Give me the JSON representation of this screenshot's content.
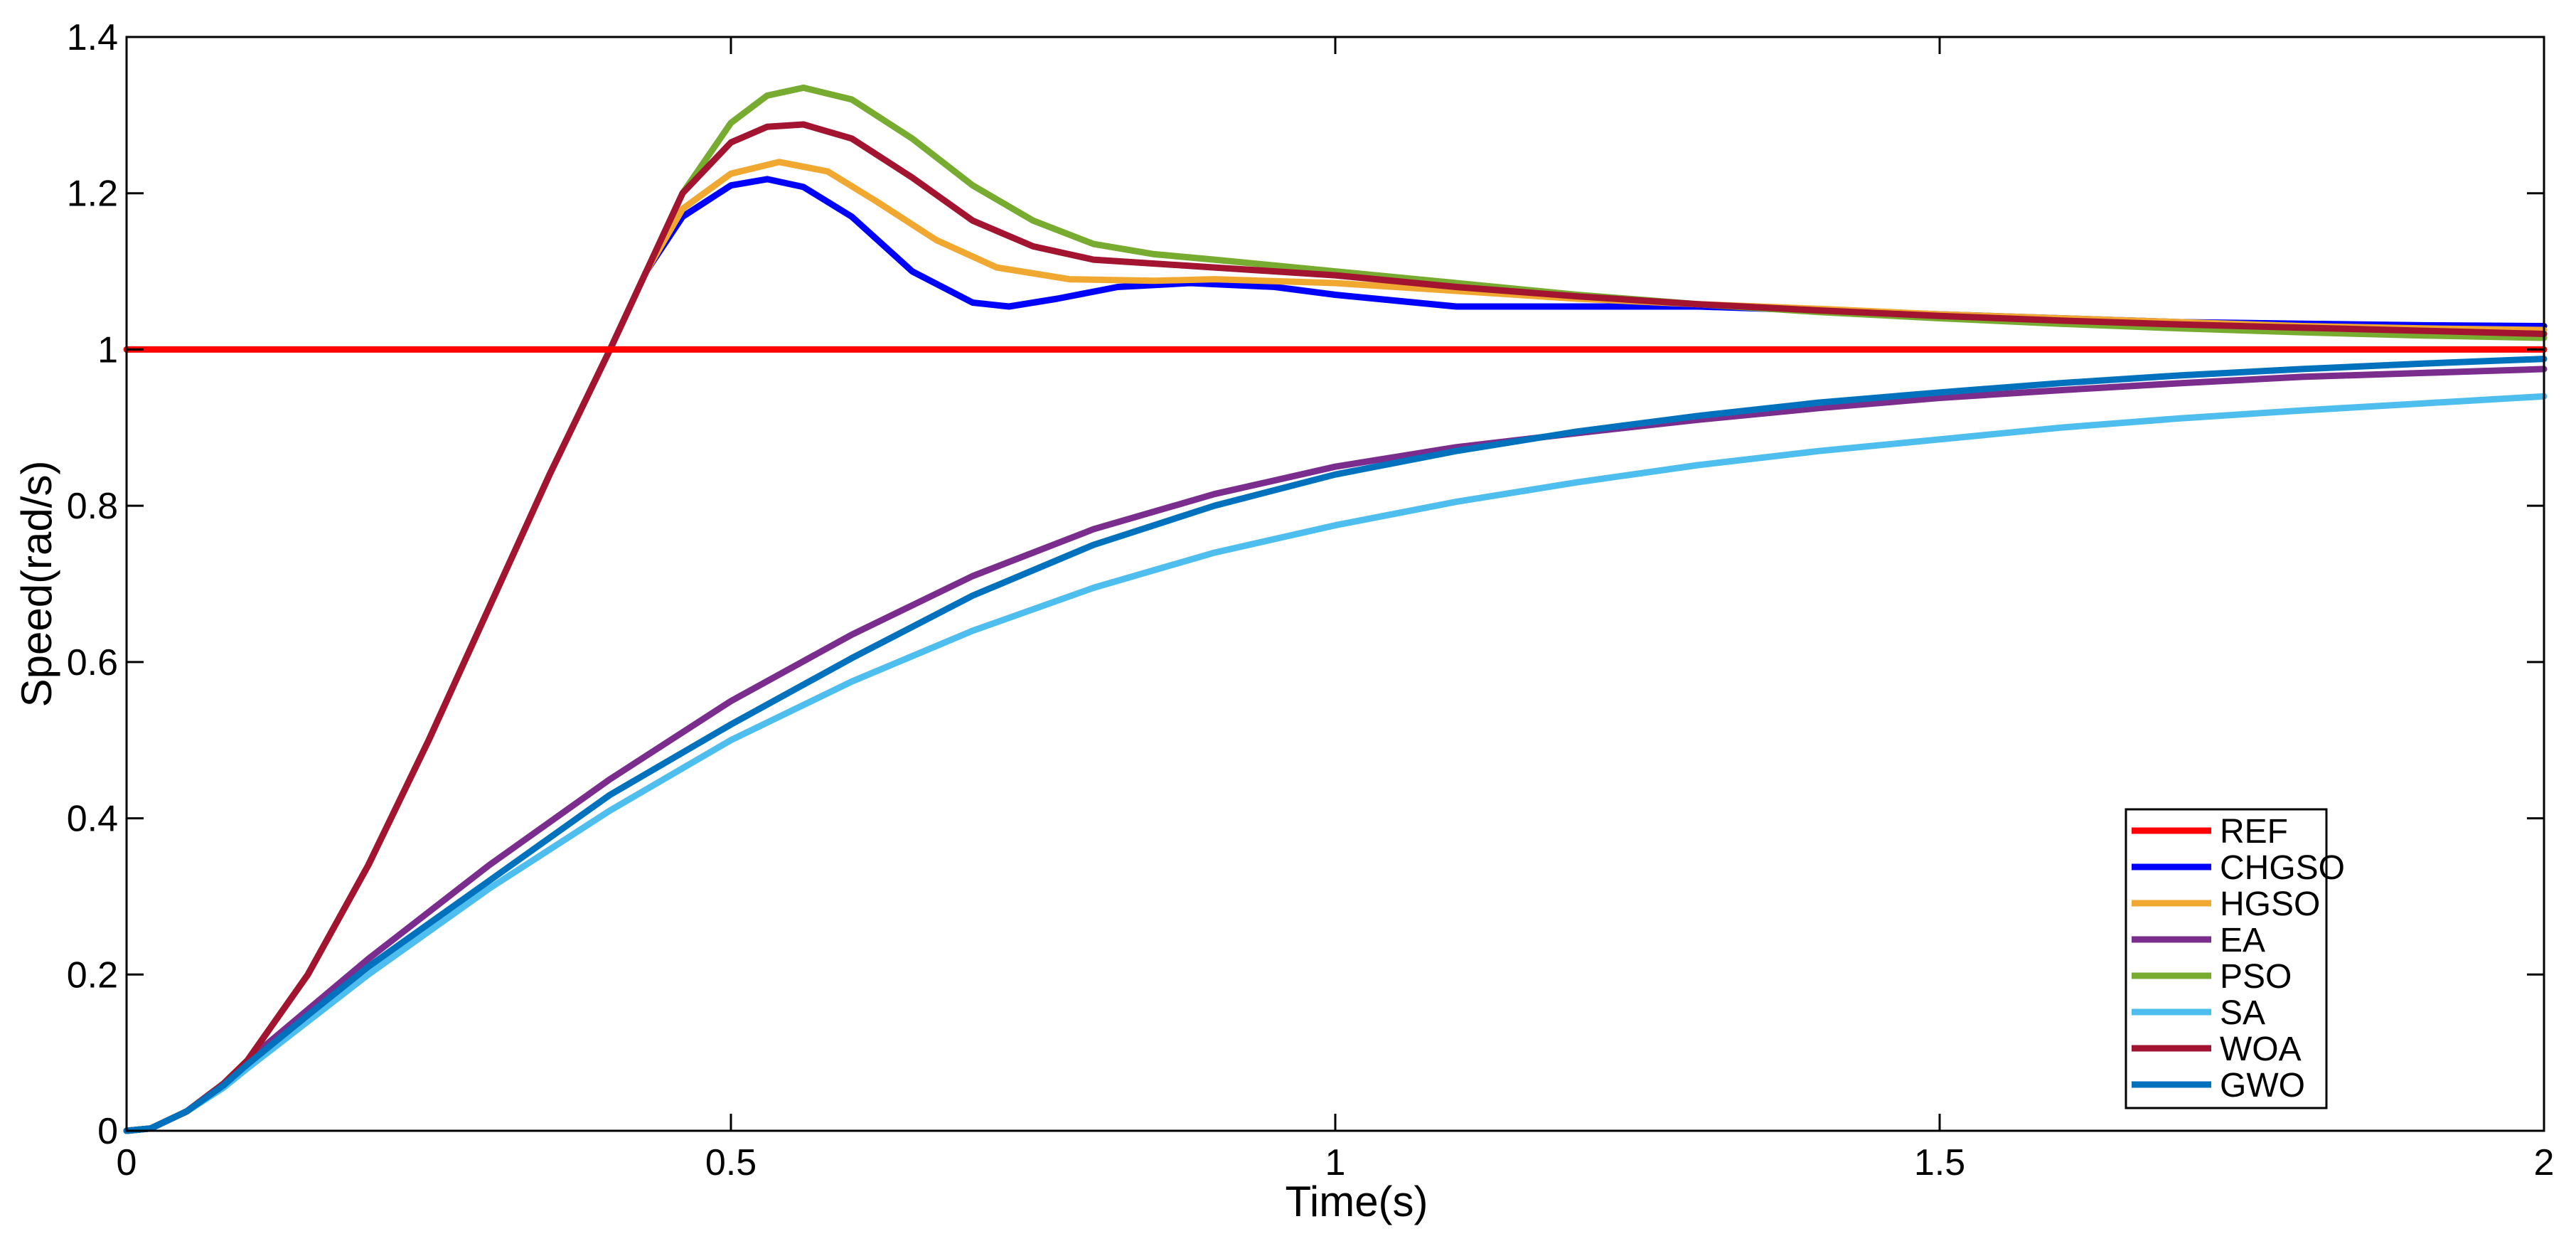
{
  "chart_data": {
    "type": "line",
    "title": "",
    "xlabel": "Time(s)",
    "ylabel": "Speed(rad/s)",
    "xlim": [
      0,
      2
    ],
    "ylim": [
      0,
      1.4
    ],
    "xticks": [
      0,
      0.5,
      1,
      1.5,
      2
    ],
    "xtick_labels": [
      "0",
      "0.5",
      "1",
      "1.5",
      "2"
    ],
    "yticks": [
      0,
      0.2,
      0.4,
      0.6,
      0.8,
      1,
      1.2,
      1.4
    ],
    "ytick_labels": [
      "0",
      "0.2",
      "0.4",
      "0.6",
      "0.8",
      "1",
      "1.2",
      "1.4"
    ],
    "grid": false,
    "legend_position": "bottom-right",
    "series": [
      {
        "name": "REF",
        "color": "#ff0000",
        "x": [
          0,
          2
        ],
        "y": [
          1,
          1
        ]
      },
      {
        "name": "CHGSO",
        "color": "#0000ff",
        "x": [
          0,
          0.02,
          0.05,
          0.08,
          0.1,
          0.15,
          0.2,
          0.25,
          0.3,
          0.35,
          0.4,
          0.43,
          0.46,
          0.5,
          0.53,
          0.56,
          0.6,
          0.65,
          0.7,
          0.73,
          0.77,
          0.82,
          0.88,
          0.95,
          1.0,
          1.1,
          1.2,
          1.3,
          1.4,
          1.5,
          1.6,
          1.7,
          1.8,
          1.9,
          2.0
        ],
        "y": [
          0,
          0.003,
          0.025,
          0.06,
          0.09,
          0.2,
          0.34,
          0.5,
          0.67,
          0.84,
          1.0,
          1.1,
          1.17,
          1.21,
          1.218,
          1.208,
          1.17,
          1.1,
          1.06,
          1.055,
          1.065,
          1.08,
          1.085,
          1.08,
          1.07,
          1.055,
          1.055,
          1.055,
          1.05,
          1.045,
          1.04,
          1.035,
          1.033,
          1.031,
          1.03
        ]
      },
      {
        "name": "HGSO",
        "color": "#f0a830",
        "x": [
          0,
          0.02,
          0.05,
          0.08,
          0.1,
          0.15,
          0.2,
          0.25,
          0.3,
          0.35,
          0.4,
          0.43,
          0.46,
          0.5,
          0.54,
          0.58,
          0.62,
          0.67,
          0.72,
          0.78,
          0.85,
          0.9,
          1.0,
          1.1,
          1.2,
          1.3,
          1.4,
          1.5,
          1.6,
          1.7,
          1.8,
          1.9,
          2.0
        ],
        "y": [
          0,
          0.003,
          0.025,
          0.06,
          0.09,
          0.2,
          0.34,
          0.5,
          0.67,
          0.84,
          1.0,
          1.1,
          1.18,
          1.225,
          1.24,
          1.228,
          1.19,
          1.14,
          1.105,
          1.09,
          1.088,
          1.09,
          1.085,
          1.075,
          1.065,
          1.058,
          1.052,
          1.045,
          1.04,
          1.035,
          1.03,
          1.027,
          1.025
        ]
      },
      {
        "name": "EA",
        "color": "#7b2d8e",
        "x": [
          0,
          0.02,
          0.05,
          0.08,
          0.1,
          0.15,
          0.2,
          0.3,
          0.4,
          0.5,
          0.6,
          0.7,
          0.8,
          0.9,
          1.0,
          1.1,
          1.2,
          1.3,
          1.4,
          1.5,
          1.6,
          1.7,
          1.8,
          1.9,
          2.0
        ],
        "y": [
          0,
          0.003,
          0.025,
          0.06,
          0.09,
          0.155,
          0.22,
          0.34,
          0.45,
          0.55,
          0.635,
          0.71,
          0.77,
          0.815,
          0.85,
          0.875,
          0.893,
          0.91,
          0.925,
          0.938,
          0.948,
          0.957,
          0.965,
          0.97,
          0.975
        ]
      },
      {
        "name": "PSO",
        "color": "#77ac30",
        "x": [
          0,
          0.02,
          0.05,
          0.08,
          0.1,
          0.15,
          0.2,
          0.25,
          0.3,
          0.35,
          0.4,
          0.43,
          0.46,
          0.5,
          0.53,
          0.56,
          0.6,
          0.65,
          0.7,
          0.75,
          0.8,
          0.85,
          0.9,
          1.0,
          1.1,
          1.2,
          1.3,
          1.4,
          1.5,
          1.6,
          1.7,
          1.8,
          1.9,
          2.0
        ],
        "y": [
          0,
          0.003,
          0.025,
          0.06,
          0.09,
          0.2,
          0.34,
          0.5,
          0.67,
          0.84,
          1.0,
          1.1,
          1.2,
          1.29,
          1.325,
          1.335,
          1.32,
          1.27,
          1.21,
          1.165,
          1.135,
          1.122,
          1.115,
          1.1,
          1.085,
          1.07,
          1.058,
          1.048,
          1.04,
          1.033,
          1.027,
          1.022,
          1.018,
          1.015
        ]
      },
      {
        "name": "SA",
        "color": "#4dbeee",
        "x": [
          0,
          0.02,
          0.05,
          0.08,
          0.1,
          0.15,
          0.2,
          0.3,
          0.4,
          0.5,
          0.6,
          0.7,
          0.8,
          0.9,
          1.0,
          1.1,
          1.2,
          1.3,
          1.4,
          1.5,
          1.6,
          1.7,
          1.8,
          1.9,
          2.0
        ],
        "y": [
          0,
          0.003,
          0.025,
          0.055,
          0.08,
          0.14,
          0.2,
          0.31,
          0.41,
          0.5,
          0.575,
          0.64,
          0.695,
          0.74,
          0.775,
          0.805,
          0.83,
          0.852,
          0.87,
          0.885,
          0.9,
          0.912,
          0.922,
          0.931,
          0.94
        ]
      },
      {
        "name": "WOA",
        "color": "#a2142f",
        "x": [
          0,
          0.02,
          0.05,
          0.08,
          0.1,
          0.15,
          0.2,
          0.25,
          0.3,
          0.35,
          0.4,
          0.43,
          0.46,
          0.5,
          0.53,
          0.56,
          0.6,
          0.65,
          0.7,
          0.75,
          0.8,
          0.9,
          1.0,
          1.1,
          1.2,
          1.3,
          1.4,
          1.5,
          1.6,
          1.7,
          1.8,
          1.9,
          2.0
        ],
        "y": [
          0,
          0.003,
          0.025,
          0.06,
          0.09,
          0.2,
          0.34,
          0.5,
          0.67,
          0.84,
          1.0,
          1.1,
          1.2,
          1.265,
          1.285,
          1.288,
          1.27,
          1.22,
          1.165,
          1.132,
          1.115,
          1.105,
          1.095,
          1.08,
          1.068,
          1.058,
          1.05,
          1.043,
          1.037,
          1.032,
          1.028,
          1.024,
          1.02
        ]
      },
      {
        "name": "GWO",
        "color": "#0072bd",
        "x": [
          0,
          0.02,
          0.05,
          0.08,
          0.1,
          0.15,
          0.2,
          0.3,
          0.4,
          0.5,
          0.6,
          0.7,
          0.8,
          0.9,
          1.0,
          1.1,
          1.2,
          1.3,
          1.4,
          1.5,
          1.6,
          1.7,
          1.8,
          1.9,
          2.0
        ],
        "y": [
          0,
          0.003,
          0.025,
          0.058,
          0.085,
          0.148,
          0.21,
          0.32,
          0.43,
          0.52,
          0.605,
          0.685,
          0.75,
          0.8,
          0.84,
          0.87,
          0.895,
          0.915,
          0.932,
          0.945,
          0.957,
          0.967,
          0.975,
          0.982,
          0.988
        ]
      }
    ]
  }
}
